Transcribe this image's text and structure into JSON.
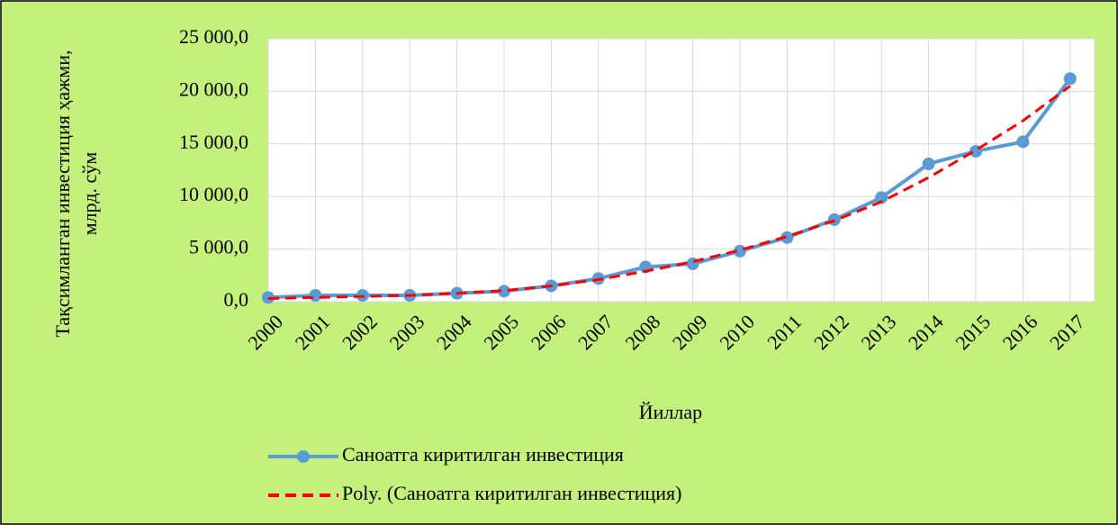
{
  "chart_data": {
    "type": "line",
    "y_label": [
      "Тақсимланган инвестиция ҳажми,",
      "млрд. сўм"
    ],
    "x_label": "Йиллар",
    "categories": [
      "2000",
      "2001",
      "2002",
      "2003",
      "2004",
      "2005",
      "2006",
      "2007",
      "2008",
      "2009",
      "2010",
      "2011",
      "2012",
      "2013",
      "2014",
      "2015",
      "2016",
      "2017"
    ],
    "series": [
      {
        "name": "Саноатга киритилган инвестиция",
        "color": "#5b9bd5",
        "line_style": "solid",
        "markers": true,
        "values": [
          400,
          600,
          600,
          600,
          800,
          1000,
          1500,
          2200,
          3300,
          3600,
          4800,
          6100,
          7800,
          9900,
          13100,
          14300,
          15200,
          21200
        ]
      },
      {
        "name": "Poly. (Саноатга киритилган инвестиция)",
        "color": "#ff0000",
        "line_style": "dashed",
        "markers": false,
        "values": [
          300,
          400,
          500,
          600,
          800,
          1050,
          1500,
          2100,
          2900,
          3800,
          4900,
          6200,
          7700,
          9500,
          11800,
          14400,
          17200,
          20500
        ]
      }
    ],
    "ylim": [
      0,
      25000
    ],
    "yticks": [
      {
        "value": 0,
        "label": "0,0"
      },
      {
        "value": 5000,
        "label": "5 000,0"
      },
      {
        "value": 10000,
        "label": "10 000,0"
      },
      {
        "value": 15000,
        "label": "15 000,0"
      },
      {
        "value": 20000,
        "label": "20 000,0"
      },
      {
        "value": 25000,
        "label": "25 000,0"
      }
    ],
    "grid": true,
    "legend": "bottom"
  }
}
